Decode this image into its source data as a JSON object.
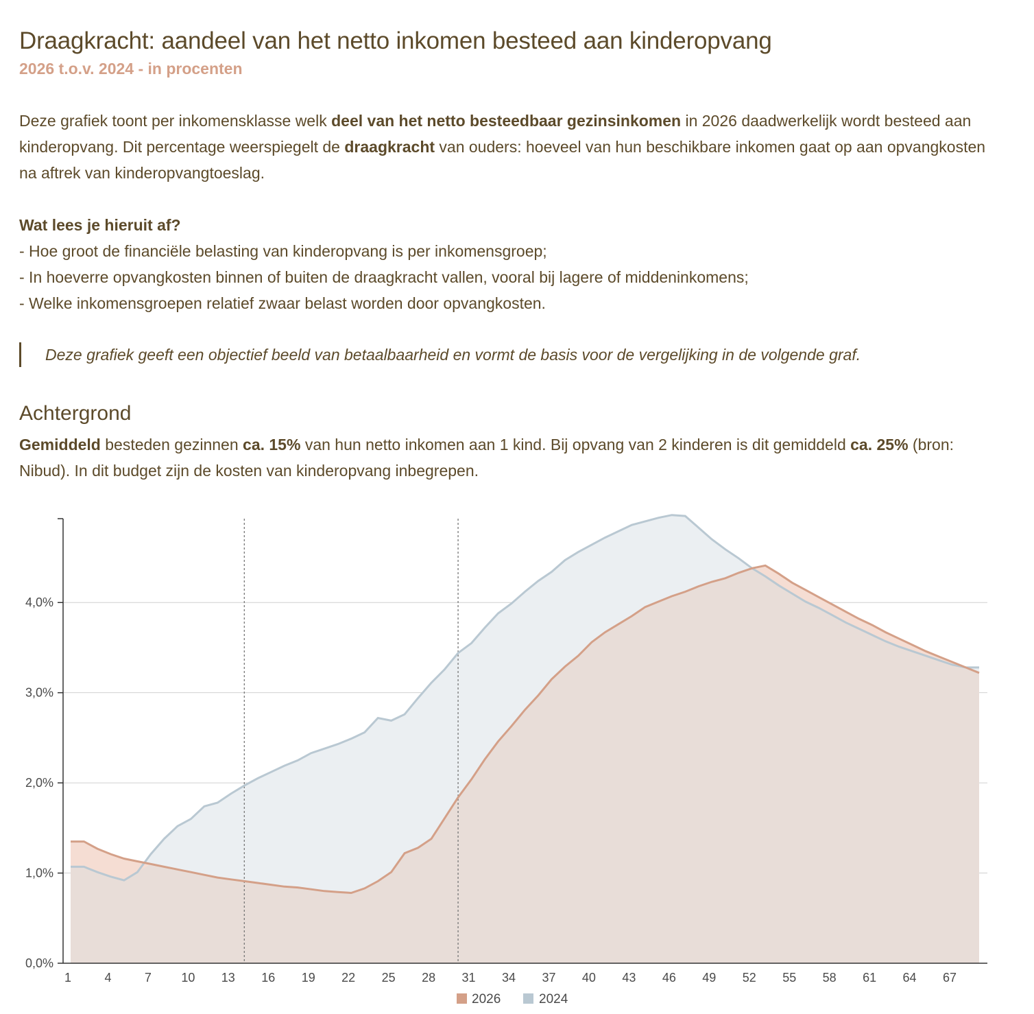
{
  "header": {
    "title": "Draagkracht: aandeel van het netto inkomen besteed aan kinderopvang",
    "subtitle": "2026 t.o.v. 2024 - in procenten"
  },
  "intro": {
    "p1_a": "Deze grafiek toont per inkomensklasse welk ",
    "p1_b": "deel van het netto besteedbaar gezinsinkomen",
    "p1_c": " in 2026 daadwerkelijk wordt besteed aan kinderopvang. Dit percentage weerspiegelt de ",
    "p1_d": "draagkracht",
    "p1_e": " van ouders: hoeveel van hun beschikbare inkomen gaat op aan opvangkosten na aftrek van kinderopvangtoeslag."
  },
  "questions": {
    "heading": "Wat lees je hieruit af?",
    "items": [
      "- Hoe groot de financiële belasting van kinderopvang is per inkomensgroep;",
      "- In hoeverre opvangkosten binnen of buiten de draagkracht vallen, vooral bij lagere of middeninkomens;",
      "- Welke inkomensgroepen relatief zwaar belast worden door opvangkosten."
    ]
  },
  "quote": "Deze grafiek geeft een objectief beeld van betaalbaarheid en vormt de basis voor de vergelijking in de volgende graf.",
  "background": {
    "heading": "Achtergrond",
    "p_a": "Gemiddeld",
    "p_b": " besteden gezinnen ",
    "p_c": "ca. 15%",
    "p_d": "  van hun netto inkomen aan 1 kind. Bij opvang van 2 kinderen is dit gemiddeld ",
    "p_e": "ca. 25%",
    "p_f": " (bron: Nibud). In dit budget zijn de kosten van kinderopvang inbegrepen."
  },
  "colors": {
    "text": "#5c4a2a",
    "series2026_line": "#d4a088",
    "series2026_fill": "#e8ddd8",
    "series2026_fill_top": "#f5ddd3",
    "series2024_line": "#b9c8d2",
    "series2024_fill": "#ebeff2",
    "grid": "#d0d0d0",
    "axis": "#333333"
  },
  "chart_data": {
    "type": "area",
    "x": [
      1,
      2,
      3,
      4,
      5,
      6,
      7,
      8,
      9,
      10,
      11,
      12,
      13,
      14,
      15,
      16,
      17,
      18,
      19,
      20,
      21,
      22,
      23,
      24,
      25,
      26,
      27,
      28,
      29,
      30,
      31,
      32,
      33,
      34,
      35,
      36,
      37,
      38,
      39,
      40,
      41,
      42,
      43,
      44,
      45,
      46,
      47,
      48,
      49,
      50,
      51,
      52,
      53,
      54,
      55,
      56,
      57,
      58,
      59,
      60,
      61,
      62,
      63,
      64,
      65,
      66,
      67,
      68,
      69
    ],
    "x_tick_labels": [
      "1",
      "4",
      "7",
      "10",
      "13",
      "16",
      "19",
      "22",
      "25",
      "28",
      "31",
      "34",
      "37",
      "40",
      "43",
      "46",
      "49",
      "52",
      "55",
      "58",
      "61",
      "64",
      "67"
    ],
    "y_tick_labels": [
      "0,0%",
      "1,0%",
      "2,0%",
      "3,0%",
      "4,0%"
    ],
    "ylim": [
      0,
      4.93
    ],
    "y_gridlines": [
      1,
      2,
      3,
      4
    ],
    "reference_lines_x": [
      14,
      30
    ],
    "series": [
      {
        "name": "2026",
        "values": [
          1.35,
          1.35,
          1.27,
          1.21,
          1.16,
          1.13,
          1.1,
          1.07,
          1.04,
          1.01,
          0.98,
          0.95,
          0.93,
          0.91,
          0.89,
          0.87,
          0.85,
          0.84,
          0.82,
          0.8,
          0.79,
          0.78,
          0.83,
          0.91,
          1.01,
          1.22,
          1.28,
          1.38,
          1.61,
          1.84,
          2.04,
          2.26,
          2.46,
          2.63,
          2.81,
          2.97,
          3.15,
          3.29,
          3.41,
          3.56,
          3.67,
          3.76,
          3.85,
          3.95,
          4.01,
          4.07,
          4.12,
          4.18,
          4.23,
          4.27,
          4.33,
          4.38,
          4.41,
          4.32,
          4.22,
          4.14,
          4.06,
          3.98,
          3.9,
          3.82,
          3.75,
          3.67,
          3.6,
          3.53,
          3.46,
          3.4,
          3.34,
          3.28,
          3.22
        ]
      },
      {
        "name": "2024",
        "values": [
          1.07,
          1.07,
          1.01,
          0.96,
          0.92,
          1.01,
          1.21,
          1.38,
          1.52,
          1.6,
          1.74,
          1.78,
          1.88,
          1.97,
          2.05,
          2.12,
          2.19,
          2.25,
          2.33,
          2.38,
          2.43,
          2.49,
          2.56,
          2.72,
          2.69,
          2.76,
          2.94,
          3.11,
          3.26,
          3.44,
          3.55,
          3.72,
          3.88,
          3.99,
          4.12,
          4.24,
          4.34,
          4.47,
          4.56,
          4.64,
          4.72,
          4.79,
          4.86,
          4.9,
          4.94,
          4.97,
          4.96,
          4.83,
          4.7,
          4.59,
          4.49,
          4.38,
          4.29,
          4.19,
          4.1,
          4.01,
          3.94,
          3.86,
          3.78,
          3.71,
          3.64,
          3.57,
          3.51,
          3.46,
          3.41,
          3.36,
          3.31,
          3.28,
          3.28
        ]
      }
    ]
  }
}
